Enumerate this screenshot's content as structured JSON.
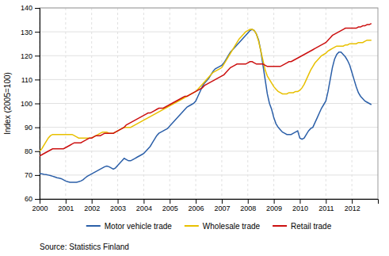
{
  "chart_data": {
    "type": "line",
    "ylabel": "Index (2005=100)",
    "annotations": [
      "Source: Statistics Finland"
    ],
    "xlim": [
      2000,
      2013.0
    ],
    "xticks": [
      2000,
      2001,
      2002,
      2003,
      2004,
      2005,
      2006,
      2007,
      2008,
      2009,
      2010,
      2011,
      2012
    ],
    "ylim": [
      60,
      140
    ],
    "yticks": [
      60,
      70,
      80,
      90,
      100,
      110,
      120,
      130,
      140
    ],
    "grid": true,
    "legend": "bottom",
    "x": [
      2000.0,
      2000.083,
      2000.167,
      2000.25,
      2000.333,
      2000.417,
      2000.5,
      2000.583,
      2000.667,
      2000.75,
      2000.833,
      2000.917,
      2001.0,
      2001.083,
      2001.167,
      2001.25,
      2001.333,
      2001.417,
      2001.5,
      2001.583,
      2001.667,
      2001.75,
      2001.833,
      2001.917,
      2002.0,
      2002.083,
      2002.167,
      2002.25,
      2002.333,
      2002.417,
      2002.5,
      2002.583,
      2002.667,
      2002.75,
      2002.833,
      2002.917,
      2003.0,
      2003.083,
      2003.167,
      2003.25,
      2003.333,
      2003.417,
      2003.5,
      2003.583,
      2003.667,
      2003.75,
      2003.833,
      2003.917,
      2004.0,
      2004.083,
      2004.167,
      2004.25,
      2004.333,
      2004.417,
      2004.5,
      2004.583,
      2004.667,
      2004.75,
      2004.833,
      2004.917,
      2005.0,
      2005.083,
      2005.167,
      2005.25,
      2005.333,
      2005.417,
      2005.5,
      2005.583,
      2005.667,
      2005.75,
      2005.833,
      2005.917,
      2006.0,
      2006.083,
      2006.167,
      2006.25,
      2006.333,
      2006.417,
      2006.5,
      2006.583,
      2006.667,
      2006.75,
      2006.833,
      2006.917,
      2007.0,
      2007.083,
      2007.167,
      2007.25,
      2007.333,
      2007.417,
      2007.5,
      2007.583,
      2007.667,
      2007.75,
      2007.833,
      2007.917,
      2008.0,
      2008.083,
      2008.167,
      2008.25,
      2008.333,
      2008.417,
      2008.5,
      2008.583,
      2008.667,
      2008.75,
      2008.833,
      2008.917,
      2009.0,
      2009.083,
      2009.167,
      2009.25,
      2009.333,
      2009.417,
      2009.5,
      2009.583,
      2009.667,
      2009.75,
      2009.833,
      2009.917,
      2010.0,
      2010.083,
      2010.167,
      2010.25,
      2010.333,
      2010.417,
      2010.5,
      2010.583,
      2010.667,
      2010.75,
      2010.833,
      2010.917,
      2011.0,
      2011.083,
      2011.167,
      2011.25,
      2011.333,
      2011.417,
      2011.5,
      2011.583,
      2011.667,
      2011.75,
      2011.833,
      2011.917,
      2012.0,
      2012.083,
      2012.167,
      2012.25,
      2012.333,
      2012.417,
      2012.5,
      2012.583,
      2012.667,
      2012.75
    ],
    "series": [
      {
        "name": "Motor vehicle trade",
        "color": "#2b5fa8",
        "values": [
          70.5,
          70.5,
          70.3,
          70.2,
          70.0,
          69.8,
          69.5,
          69.2,
          68.9,
          68.7,
          68.5,
          68.0,
          67.5,
          67.2,
          67.0,
          67.0,
          67.0,
          67.0,
          67.2,
          67.5,
          68.0,
          68.8,
          69.5,
          70.0,
          70.5,
          71.0,
          71.5,
          72.0,
          72.5,
          73.0,
          73.5,
          73.8,
          73.5,
          73.0,
          72.5,
          73.0,
          74.0,
          75.0,
          76.0,
          77.0,
          76.5,
          76.0,
          76.0,
          76.5,
          77.0,
          77.5,
          78.0,
          78.5,
          79.0,
          80.0,
          81.0,
          82.0,
          83.5,
          85.0,
          86.5,
          87.5,
          88.0,
          88.5,
          89.0,
          89.5,
          90.5,
          91.5,
          92.5,
          93.5,
          94.5,
          95.5,
          96.5,
          97.5,
          98.5,
          99.0,
          99.5,
          100.0,
          101.0,
          103.0,
          105.0,
          107.0,
          108.5,
          109.5,
          110.5,
          112.0,
          113.5,
          114.5,
          115.0,
          115.5,
          116.0,
          117.0,
          118.5,
          120.0,
          121.5,
          122.5,
          123.5,
          124.5,
          125.5,
          126.5,
          127.5,
          128.5,
          129.5,
          130.5,
          131.0,
          130.5,
          129.0,
          126.5,
          122.0,
          116.0,
          110.0,
          104.0,
          100.0,
          97.5,
          94.0,
          91.5,
          90.0,
          89.0,
          88.0,
          87.5,
          87.0,
          87.0,
          87.0,
          87.5,
          88.0,
          88.5,
          85.5,
          85.0,
          85.5,
          87.0,
          88.5,
          89.5,
          90.0,
          92.0,
          94.0,
          96.0,
          98.0,
          99.5,
          101.0,
          105.0,
          110.0,
          115.0,
          118.5,
          120.5,
          121.5,
          121.5,
          120.5,
          119.5,
          118.0,
          116.0,
          113.0,
          110.0,
          107.0,
          104.5,
          103.0,
          102.0,
          101.0,
          100.5,
          100.0,
          99.5
        ]
      },
      {
        "name": "Wholesale trade",
        "color": "#e8c000",
        "values": [
          80.0,
          81.0,
          82.5,
          84.0,
          85.5,
          86.5,
          87.0,
          87.0,
          87.0,
          87.0,
          87.0,
          87.0,
          87.0,
          87.0,
          87.0,
          87.0,
          86.5,
          86.0,
          85.5,
          85.5,
          85.5,
          85.5,
          85.5,
          85.5,
          85.5,
          86.0,
          86.5,
          87.0,
          87.5,
          88.0,
          88.0,
          88.0,
          87.5,
          87.5,
          87.5,
          88.0,
          88.5,
          89.0,
          89.5,
          90.0,
          90.0,
          90.0,
          90.0,
          90.5,
          91.0,
          91.5,
          92.0,
          92.5,
          93.0,
          93.5,
          94.0,
          94.5,
          95.0,
          95.5,
          96.0,
          96.5,
          97.0,
          97.5,
          98.0,
          98.5,
          99.0,
          99.5,
          100.0,
          100.5,
          101.0,
          101.5,
          102.0,
          102.5,
          103.0,
          103.5,
          104.0,
          104.5,
          105.0,
          106.0,
          107.0,
          108.0,
          109.0,
          110.0,
          111.0,
          112.0,
          113.0,
          113.5,
          114.0,
          114.5,
          115.0,
          116.5,
          118.0,
          119.5,
          121.0,
          122.5,
          124.0,
          125.5,
          127.0,
          128.0,
          129.0,
          130.0,
          130.5,
          131.0,
          131.0,
          130.5,
          129.0,
          126.0,
          122.0,
          118.0,
          114.0,
          111.5,
          110.0,
          108.5,
          107.0,
          106.0,
          105.0,
          104.5,
          104.0,
          104.0,
          104.0,
          104.5,
          104.5,
          104.5,
          105.0,
          105.0,
          105.5,
          106.5,
          108.0,
          110.0,
          112.0,
          114.0,
          115.5,
          117.0,
          118.0,
          119.0,
          120.0,
          120.5,
          121.0,
          122.0,
          122.5,
          123.0,
          123.5,
          124.0,
          124.0,
          124.0,
          124.0,
          124.5,
          124.5,
          125.0,
          125.0,
          125.0,
          125.0,
          125.5,
          125.5,
          125.5,
          126.0,
          126.5,
          126.5,
          126.5
        ]
      },
      {
        "name": "Retail trade",
        "color": "#cc1010",
        "values": [
          78.0,
          78.5,
          79.0,
          79.5,
          80.0,
          80.5,
          81.0,
          81.0,
          81.0,
          81.0,
          81.0,
          81.0,
          81.5,
          82.0,
          82.5,
          83.0,
          83.5,
          83.5,
          83.5,
          83.5,
          84.0,
          84.5,
          85.0,
          85.5,
          85.5,
          86.0,
          86.5,
          86.5,
          86.5,
          87.0,
          87.5,
          87.5,
          87.5,
          87.5,
          87.5,
          88.0,
          88.5,
          89.0,
          89.5,
          90.0,
          91.0,
          91.5,
          92.0,
          92.5,
          93.0,
          93.5,
          94.0,
          94.5,
          95.0,
          95.5,
          96.0,
          96.0,
          96.5,
          97.0,
          97.5,
          98.0,
          98.0,
          98.0,
          98.5,
          99.0,
          99.5,
          100.0,
          100.5,
          101.0,
          101.5,
          102.0,
          102.5,
          103.0,
          103.0,
          103.5,
          104.0,
          104.5,
          105.0,
          105.5,
          106.0,
          106.5,
          107.5,
          108.0,
          108.5,
          109.0,
          109.5,
          110.0,
          110.5,
          111.0,
          111.5,
          112.0,
          113.0,
          114.0,
          115.0,
          115.5,
          116.0,
          116.5,
          116.5,
          116.5,
          116.5,
          116.5,
          117.0,
          117.5,
          117.5,
          117.0,
          116.5,
          116.5,
          116.5,
          116.5,
          116.0,
          115.5,
          115.5,
          115.5,
          115.5,
          115.5,
          115.5,
          115.5,
          116.0,
          116.5,
          117.0,
          117.5,
          117.5,
          118.0,
          118.5,
          119.0,
          119.5,
          120.0,
          120.5,
          121.0,
          121.5,
          122.0,
          122.5,
          123.0,
          123.5,
          124.0,
          124.5,
          125.0,
          125.5,
          126.5,
          127.5,
          128.5,
          129.0,
          129.5,
          130.0,
          130.5,
          131.0,
          131.5,
          131.5,
          131.5,
          131.5,
          131.5,
          131.5,
          132.0,
          132.0,
          132.5,
          132.5,
          133.0,
          133.0,
          133.5
        ]
      }
    ]
  }
}
